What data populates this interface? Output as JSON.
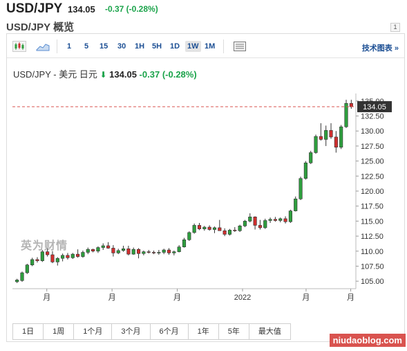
{
  "header": {
    "symbol": "USD/JPY",
    "price": "134.05",
    "change": "-0.37 (-0.28%)",
    "overview_cut": "USD/JPY 概览",
    "mini_label": "1"
  },
  "toolbar": {
    "intervals": [
      "1",
      "5",
      "15",
      "30",
      "1H",
      "5H",
      "1D",
      "1W",
      "1M"
    ],
    "active_interval": "1W",
    "tech_chart_label": "技术图表",
    "tech_chart_arrow": "»"
  },
  "chart_title": {
    "name": "USD/JPY - 美元 日元",
    "price": "134.05",
    "change": "-0.37",
    "percent": "(-0.28%)"
  },
  "brand": "英为财情",
  "watermark": "niudaoblog.com",
  "ranges": [
    "1日",
    "1周",
    "1个月",
    "3个月",
    "6个月",
    "1年",
    "5年",
    "最大值"
  ],
  "colors": {
    "up": "#2e9e3e",
    "down": "#cf2f2f",
    "link": "#1c4f94",
    "positive_text": "#1aa34a"
  },
  "chart_data": {
    "type": "candlestick",
    "y_axis": {
      "ylim": [
        103.75,
        136.25
      ],
      "ticks": [
        "105.00",
        "107.50",
        "110.00",
        "112.50",
        "115.00",
        "117.50",
        "120.00",
        "122.50",
        "125.00",
        "127.50",
        "130.00",
        "132.50",
        "135.00"
      ],
      "side": "right"
    },
    "x_labels": [
      "月",
      "月",
      "月",
      "2022",
      "月",
      "月"
    ],
    "last_price_label": "134.05",
    "last_price": 134.05,
    "candles": [
      [
        104.9,
        105.4,
        104.7,
        105.2
      ],
      [
        105.1,
        106.6,
        104.9,
        106.4
      ],
      [
        106.4,
        107.9,
        106.2,
        107.7
      ],
      [
        107.7,
        108.9,
        107.5,
        108.6
      ],
      [
        108.6,
        109.0,
        108.1,
        108.4
      ],
      [
        108.4,
        110.2,
        108.2,
        109.9
      ],
      [
        109.9,
        110.6,
        109.1,
        109.4
      ],
      [
        109.4,
        110.0,
        108.0,
        108.2
      ],
      [
        108.2,
        109.0,
        107.6,
        108.8
      ],
      [
        108.8,
        109.6,
        108.3,
        109.3
      ],
      [
        109.3,
        109.7,
        108.6,
        108.9
      ],
      [
        108.9,
        109.7,
        108.7,
        109.5
      ],
      [
        109.5,
        110.3,
        108.9,
        109.1
      ],
      [
        109.1,
        110.1,
        108.9,
        109.8
      ],
      [
        109.8,
        110.6,
        109.5,
        110.3
      ],
      [
        110.3,
        110.4,
        109.8,
        110.0
      ],
      [
        110.0,
        110.8,
        109.7,
        110.6
      ],
      [
        110.6,
        111.3,
        110.2,
        110.9
      ],
      [
        110.9,
        111.5,
        110.4,
        110.5
      ],
      [
        110.5,
        111.0,
        109.1,
        109.7
      ],
      [
        109.7,
        110.4,
        109.5,
        110.1
      ],
      [
        110.1,
        110.9,
        109.9,
        110.4
      ],
      [
        110.4,
        110.9,
        109.3,
        109.5
      ],
      [
        109.5,
        110.6,
        109.4,
        110.3
      ],
      [
        110.3,
        110.5,
        108.8,
        109.6
      ],
      [
        109.6,
        110.1,
        109.3,
        109.9
      ],
      [
        109.9,
        110.2,
        109.6,
        109.8
      ],
      [
        109.8,
        110.1,
        109.5,
        109.7
      ],
      [
        109.7,
        110.2,
        109.4,
        109.8
      ],
      [
        109.8,
        110.4,
        109.5,
        110.2
      ],
      [
        110.2,
        110.5,
        109.4,
        109.7
      ],
      [
        109.7,
        110.1,
        109.3,
        109.9
      ],
      [
        109.9,
        111.0,
        109.8,
        110.7
      ],
      [
        110.7,
        112.2,
        110.6,
        111.9
      ],
      [
        111.9,
        113.3,
        111.7,
        113.1
      ],
      [
        113.1,
        114.6,
        112.9,
        114.3
      ],
      [
        114.3,
        114.7,
        113.5,
        113.7
      ],
      [
        113.7,
        114.2,
        113.4,
        114.0
      ],
      [
        114.0,
        114.3,
        113.4,
        113.6
      ],
      [
        113.6,
        114.1,
        113.0,
        113.9
      ],
      [
        113.9,
        115.2,
        113.7,
        113.4
      ],
      [
        113.4,
        113.8,
        112.5,
        112.8
      ],
      [
        112.8,
        113.7,
        112.6,
        113.5
      ],
      [
        113.5,
        114.0,
        113.2,
        113.4
      ],
      [
        113.4,
        114.4,
        113.2,
        114.2
      ],
      [
        114.2,
        115.2,
        114.0,
        115.0
      ],
      [
        115.0,
        116.3,
        114.8,
        115.7
      ],
      [
        115.7,
        115.8,
        113.6,
        114.3
      ],
      [
        114.3,
        115.2,
        113.6,
        113.9
      ],
      [
        113.9,
        115.4,
        113.7,
        115.1
      ],
      [
        115.1,
        115.6,
        114.7,
        115.3
      ],
      [
        115.3,
        115.7,
        114.9,
        115.1
      ],
      [
        115.1,
        115.6,
        114.8,
        115.4
      ],
      [
        115.4,
        115.8,
        114.6,
        114.9
      ],
      [
        114.9,
        116.9,
        114.7,
        116.7
      ],
      [
        116.7,
        119.1,
        116.6,
        118.7
      ],
      [
        118.7,
        122.4,
        118.5,
        122.1
      ],
      [
        122.1,
        125.0,
        121.9,
        124.7
      ],
      [
        124.7,
        126.7,
        124.5,
        126.4
      ],
      [
        126.4,
        129.4,
        126.2,
        129.1
      ],
      [
        129.1,
        131.3,
        128.4,
        128.6
      ],
      [
        128.6,
        130.9,
        127.5,
        130.1
      ],
      [
        130.1,
        131.3,
        128.7,
        129.0
      ],
      [
        129.0,
        130.0,
        126.4,
        127.3
      ],
      [
        127.3,
        131.0,
        127.0,
        130.7
      ],
      [
        130.7,
        135.2,
        130.5,
        134.6
      ],
      [
        134.6,
        135.2,
        133.7,
        134.05
      ]
    ]
  }
}
